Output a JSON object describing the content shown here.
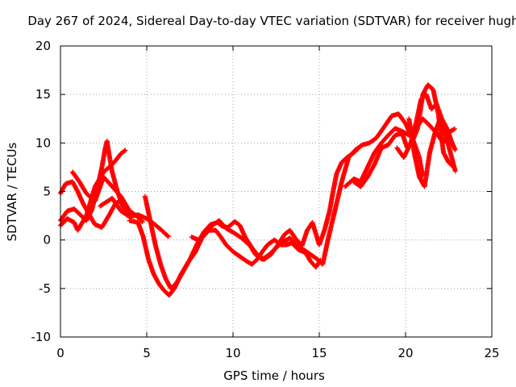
{
  "chart_data": {
    "type": "scatter",
    "title": "Day 267 of 2024, Sidereal Day-to-day VTEC variation (SDTVAR) for receiver hugh",
    "xlabel": "GPS time / hours",
    "ylabel": "SDTVAR / TECUs",
    "xlim": [
      0,
      25
    ],
    "ylim": [
      -10,
      20
    ],
    "x_ticks": [
      0,
      5,
      10,
      15,
      20,
      25
    ],
    "y_ticks": [
      -10,
      -5,
      0,
      5,
      10,
      15,
      20
    ],
    "x_tick_labels": [
      "0",
      "5",
      "10",
      "15",
      "20",
      "25"
    ],
    "y_tick_labels": [
      "-10",
      "-5",
      "0",
      "5",
      "10",
      "15",
      "20"
    ],
    "grid": true,
    "marker": "+",
    "color": "#ff0000",
    "series": [
      {
        "x": [
          0.0,
          0.3,
          0.7,
          1.0,
          1.3,
          1.7,
          2.0,
          2.4,
          2.8,
          3.2,
          3.6,
          4.0,
          4.3
        ],
        "y": [
          4.8,
          5.8,
          6.0,
          5.0,
          3.8,
          2.5,
          1.6,
          1.3,
          2.5,
          3.8,
          4.1,
          3.0,
          2.6
        ]
      },
      {
        "x": [
          0.0,
          0.4,
          0.8,
          1.2,
          1.5,
          1.8,
          2.1,
          2.4,
          2.6,
          2.7,
          2.8,
          3.0,
          3.3,
          3.6,
          4.0
        ],
        "y": [
          2.0,
          3.0,
          3.2,
          2.5,
          2.0,
          3.0,
          5.0,
          7.5,
          9.5,
          10.2,
          9.0,
          7.0,
          5.0,
          3.5,
          2.5
        ]
      },
      {
        "x": [
          0.0,
          0.4,
          0.8,
          1.0,
          1.5,
          2.0,
          2.5,
          3.0,
          3.2,
          3.5,
          3.8
        ],
        "y": [
          1.5,
          2.2,
          1.8,
          1.0,
          2.5,
          5.5,
          7.0,
          7.8,
          8.2,
          8.9,
          9.3
        ]
      },
      {
        "x": [
          0.7,
          1.1,
          1.5,
          2.0,
          2.5,
          3.0,
          3.5,
          4.0,
          4.4,
          4.8
        ],
        "y": [
          7.0,
          6.0,
          4.8,
          4.0,
          6.5,
          5.5,
          4.5,
          3.0,
          2.5,
          1.8
        ]
      },
      {
        "x": [
          2.3,
          3.0,
          3.5,
          4.0,
          4.5,
          5.0,
          5.4,
          5.8,
          6.1,
          6.3
        ],
        "y": [
          3.5,
          4.3,
          3.0,
          2.4,
          2.6,
          2.2,
          1.7,
          1.1,
          0.6,
          0.3
        ]
      },
      {
        "x": [
          4.0,
          4.5,
          4.8,
          5.1,
          5.4,
          5.7,
          6.0,
          6.3,
          6.6,
          7.0,
          7.4,
          7.8,
          8.2,
          8.6,
          9.0,
          9.3,
          9.6,
          10.0,
          10.4,
          10.8,
          11.1,
          11.4,
          11.7,
          12.0,
          12.4,
          12.8,
          13.1,
          13.4,
          13.8,
          14.2,
          14.5,
          14.8,
          15.1
        ],
        "y": [
          2.0,
          1.8,
          0.3,
          -2.0,
          -3.5,
          -4.5,
          -5.2,
          -5.7,
          -5.0,
          -3.5,
          -2.3,
          -1.3,
          0.2,
          1.0,
          1.0,
          0.3,
          -0.5,
          -1.2,
          -1.7,
          -2.2,
          -2.5,
          -2.0,
          -1.2,
          -0.5,
          0.0,
          -0.5,
          -0.5,
          -0.3,
          -1.0,
          -1.3,
          -2.2,
          -2.8,
          -2.0
        ]
      },
      {
        "x": [
          4.9,
          5.2,
          5.5,
          5.8,
          6.1,
          6.4,
          6.7,
          7.1,
          7.5,
          7.9,
          8.3,
          8.7,
          9.1,
          9.4,
          9.7,
          10.1,
          10.4,
          10.7,
          11.1,
          11.4,
          11.8,
          12.2,
          12.6,
          13.0,
          13.3,
          13.6,
          14.0,
          14.3,
          14.6,
          15.0,
          15.3,
          15.6,
          15.8,
          16.0,
          16.3,
          16.6,
          17.0,
          17.3
        ],
        "y": [
          4.5,
          2.0,
          -0.5,
          -2.5,
          -4.0,
          -5.0,
          -4.5,
          -3.3,
          -2.0,
          -0.5,
          0.8,
          1.6,
          1.8,
          1.4,
          1.3,
          1.9,
          1.5,
          0.3,
          -0.8,
          -1.5,
          -2.0,
          -1.5,
          -0.5,
          0.6,
          1.0,
          0.2,
          -0.6,
          1.0,
          1.8,
          -0.5,
          1.0,
          3.0,
          5.0,
          6.8,
          8.0,
          8.5,
          9.0,
          9.5
        ]
      },
      {
        "x": [
          7.6,
          8.0,
          8.4,
          8.8,
          9.2,
          9.6,
          10.0,
          10.5,
          11.0,
          11.3,
          11.7,
          12.1,
          12.5,
          12.9,
          13.3,
          13.7,
          14.1,
          14.5,
          14.9,
          15.2,
          15.5,
          15.9,
          16.3,
          16.7,
          17.1,
          17.5,
          17.9,
          18.3,
          18.7,
          19.2,
          19.6,
          20.0,
          20.4,
          20.8,
          21.0
        ],
        "y": [
          0.3,
          0.0,
          0.8,
          1.5,
          2.0,
          1.2,
          0.8,
          0.2,
          -0.6,
          -1.5,
          -2.0,
          -1.5,
          -0.8,
          -0.2,
          0.2,
          -0.6,
          -1.0,
          -1.5,
          -2.0,
          -2.5,
          0.0,
          3.0,
          6.0,
          8.5,
          9.3,
          9.8,
          10.0,
          10.5,
          11.5,
          12.8,
          13.0,
          12.0,
          10.5,
          8.5,
          6.5
        ]
      },
      {
        "x": [
          16.5,
          17.0,
          17.4,
          17.8,
          18.2,
          18.6,
          19.0,
          19.4,
          19.8,
          20.2,
          20.6,
          21.0,
          21.4,
          21.8,
          22.2,
          22.6,
          22.9
        ],
        "y": [
          5.5,
          6.3,
          6.0,
          7.5,
          9.0,
          10.0,
          10.8,
          11.5,
          11.2,
          10.8,
          11.5,
          12.5,
          11.8,
          11.0,
          10.0,
          11.2,
          11.5
        ]
      },
      {
        "x": [
          17.0,
          17.4,
          17.8,
          18.2,
          18.6,
          19.0,
          19.4,
          19.8,
          20.1,
          20.4,
          20.7,
          21.0,
          21.3,
          21.6,
          21.9,
          22.2,
          22.5,
          22.8
        ],
        "y": [
          6.0,
          5.5,
          6.5,
          7.8,
          9.5,
          9.8,
          10.8,
          11.0,
          9.5,
          10.2,
          11.5,
          15.0,
          16.0,
          15.5,
          13.0,
          9.0,
          8.0,
          7.5
        ]
      },
      {
        "x": [
          19.5,
          19.9,
          20.3,
          20.6,
          20.9,
          21.2,
          21.5,
          21.8,
          22.1,
          22.4,
          22.7,
          22.9
        ],
        "y": [
          9.5,
          8.5,
          10.0,
          12.0,
          14.5,
          15.0,
          13.5,
          14.0,
          12.5,
          11.5,
          10.0,
          9.2
        ]
      },
      {
        "x": [
          20.2,
          20.5,
          20.8,
          21.1,
          21.4,
          21.7,
          22.0,
          22.3,
          22.6,
          22.9
        ],
        "y": [
          12.5,
          9.0,
          6.5,
          5.5,
          9.0,
          11.0,
          12.5,
          11.0,
          9.0,
          7.0
        ]
      }
    ]
  }
}
